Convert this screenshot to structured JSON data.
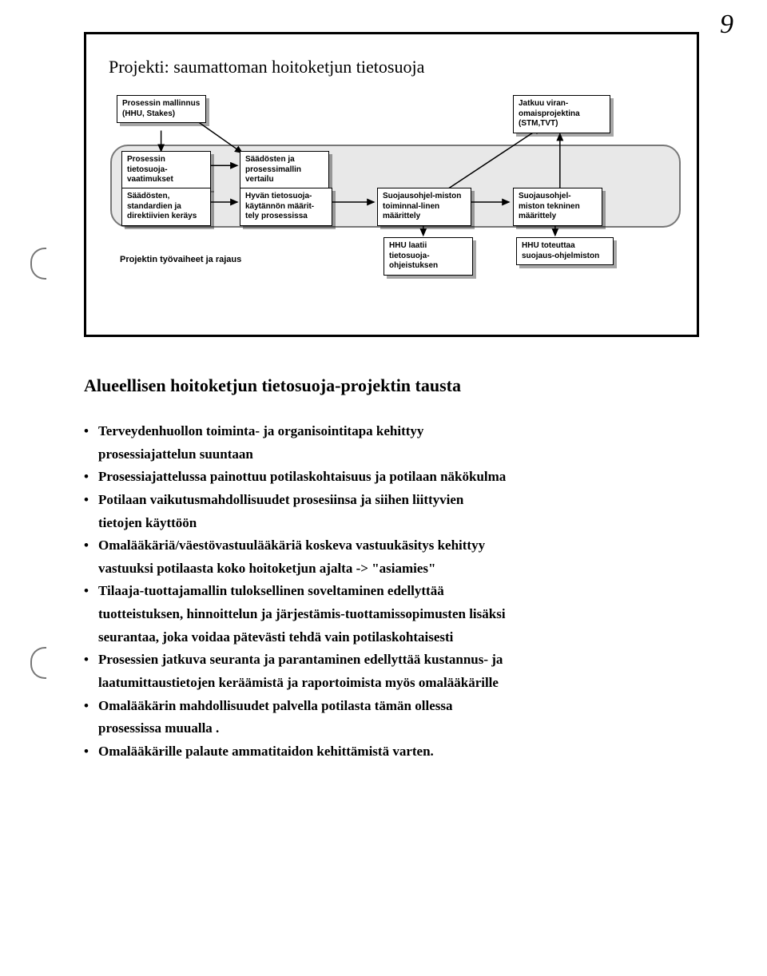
{
  "page_number_glyph": "9",
  "diagram": {
    "title": "Projekti: saumattoman hoitoketjun tietosuoja",
    "caption": "Projektin työvaiheet ja rajaus",
    "group_bg": "#e8e8e8",
    "colors": {
      "border": "#000000",
      "shadow": "rgba(0,0,0,0.35)",
      "group_border": "#777777"
    },
    "nodes": {
      "n1": "Prosessin mallinnus (HHU, Stakes)",
      "n2": "Prosessin tietosuoja-vaatimukset",
      "n3": "Säädösten, standardien ja direktiivien keräys",
      "n4": "Säädösten ja prosessimallin vertailu",
      "n5": "Hyvän tietosuoja-käytännön määrit-tely prosessissa",
      "n6": "Suojausohjel-miston toiminnal-linen määrittely",
      "n7": "Suojausohjel-miston tekninen määrittely",
      "n8": "Jatkuu viran-omaisprojektina (STM,TVT)",
      "n9": "HHU laatii tietosuoja-ohjeistuksen",
      "n10": "HHU toteuttaa suojaus-ohjelmiston"
    }
  },
  "section_title": "Alueellisen hoitoketjun tietosuoja-projektin tausta",
  "bullets": [
    [
      "Terveydenhuollon toiminta- ja organisointitapa kehittyy",
      "prosessiajattelun suuntaan"
    ],
    [
      "Prosessiajattelussa painottuu potilaskohtaisuus ja potilaan näkökulma"
    ],
    [
      "Potilaan vaikutusmahdollisuudet prosesiinsa ja siihen liittyvien",
      "tietojen käyttöön"
    ],
    [
      "Omalääkäriä/väestövastuulääkäriä koskeva vastuukäsitys kehittyy",
      "vastuuksi potilaasta koko hoitoketjun ajalta -> \"asiamies\""
    ],
    [
      "Tilaaja-tuottajamallin tuloksellinen soveltaminen edellyttää",
      "tuotteistuksen, hinnoittelun ja järjestämis-tuottamissopimusten lisäksi",
      "seurantaa, joka voidaa pätevästi tehdä vain potilaskohtaisesti"
    ],
    [
      "Prosessien jatkuva seuranta ja parantaminen edellyttää kustannus- ja",
      "laatumittaustietojen keräämistä ja raportoimista myös omalääkärille"
    ],
    [
      "Omalääkärin mahdollisuudet palvella potilasta tämän ollessa",
      "prosessissa muualla ."
    ],
    [
      "Omalääkärille palaute ammatitaidon kehittämistä varten."
    ]
  ]
}
